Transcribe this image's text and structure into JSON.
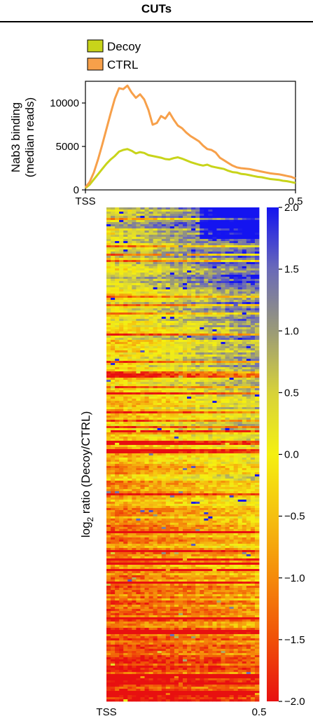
{
  "header": {
    "title": "CUTs"
  },
  "chart_data": [
    {
      "type": "line",
      "ylabel_lines": [
        "Nab3 binding",
        "(median reads)"
      ],
      "x_tick_labels": [
        "TSS",
        "0.5"
      ],
      "xlim": [
        0,
        0.5
      ],
      "ylim": [
        0,
        12500
      ],
      "y_ticks": [
        {
          "value": 0,
          "label": "0"
        },
        {
          "value": 5000,
          "label": "5000"
        },
        {
          "value": 10000,
          "label": "10000"
        }
      ],
      "legend_position": "top-left",
      "grid": false,
      "series": [
        {
          "name": "Decoy",
          "color": "#c8d41a",
          "x": [
            0,
            0.01,
            0.02,
            0.03,
            0.04,
            0.05,
            0.06,
            0.07,
            0.08,
            0.09,
            0.1,
            0.11,
            0.12,
            0.13,
            0.14,
            0.15,
            0.16,
            0.17,
            0.18,
            0.19,
            0.2,
            0.21,
            0.22,
            0.23,
            0.24,
            0.25,
            0.26,
            0.27,
            0.28,
            0.29,
            0.3,
            0.31,
            0.32,
            0.33,
            0.34,
            0.35,
            0.36,
            0.37,
            0.38,
            0.39,
            0.4,
            0.41,
            0.42,
            0.43,
            0.44,
            0.45,
            0.46,
            0.47,
            0.48,
            0.49,
            0.5
          ],
          "y": [
            200,
            600,
            1200,
            1800,
            2400,
            3000,
            3500,
            3900,
            4400,
            4600,
            4700,
            4500,
            4200,
            4350,
            4250,
            4000,
            3900,
            3800,
            3700,
            3550,
            3500,
            3650,
            3750,
            3600,
            3400,
            3200,
            3050,
            2900,
            2800,
            2900,
            2700,
            2600,
            2500,
            2400,
            2200,
            2050,
            2000,
            1850,
            1800,
            1700,
            1600,
            1500,
            1450,
            1350,
            1250,
            1200,
            1150,
            1050,
            1000,
            900,
            800
          ]
        },
        {
          "name": "CTRL",
          "color": "#f7a04a",
          "x": [
            0,
            0.01,
            0.02,
            0.03,
            0.04,
            0.05,
            0.06,
            0.07,
            0.08,
            0.09,
            0.1,
            0.11,
            0.12,
            0.13,
            0.14,
            0.15,
            0.16,
            0.17,
            0.18,
            0.19,
            0.2,
            0.21,
            0.22,
            0.23,
            0.24,
            0.25,
            0.26,
            0.27,
            0.28,
            0.29,
            0.3,
            0.31,
            0.32,
            0.33,
            0.34,
            0.35,
            0.36,
            0.37,
            0.38,
            0.39,
            0.4,
            0.41,
            0.42,
            0.43,
            0.44,
            0.45,
            0.46,
            0.47,
            0.48,
            0.49,
            0.5
          ],
          "y": [
            300,
            900,
            2000,
            3500,
            5200,
            7000,
            8800,
            10500,
            11700,
            11600,
            12000,
            11200,
            10600,
            11000,
            10400,
            9200,
            7500,
            7700,
            8500,
            8200,
            8900,
            8100,
            7400,
            7100,
            6600,
            6200,
            5900,
            5600,
            5100,
            4700,
            4600,
            4300,
            3700,
            3400,
            3100,
            2800,
            2600,
            2500,
            2450,
            2400,
            2300,
            2200,
            2100,
            2000,
            1900,
            1850,
            1800,
            1700,
            1600,
            1500,
            1300
          ]
        }
      ]
    },
    {
      "type": "heatmap",
      "ylabel": "log2 ratio (Decoy/CTRL)",
      "ylabel_main": "log",
      "ylabel_sub": "2",
      "ylabel_rest": " ratio (Decoy/CTRL)",
      "x_tick_labels": [
        "TSS",
        "0.5"
      ],
      "colorbar": {
        "range": [
          -2.0,
          2.0
        ],
        "ticks": [
          "2.0",
          "1.5",
          "1.0",
          "0.5",
          "0.0",
          "−0.5",
          "−1.0",
          "−1.5",
          "−2.0"
        ],
        "colors": [
          "#1414f0",
          "#6a6ab8",
          "#9a9a78",
          "#d7d23a",
          "#f5f011",
          "#f5c010",
          "#f58a0a",
          "#f05008",
          "#e81010"
        ]
      },
      "description_pattern": "rows sorted top-to-bottom from high to low log2 ratio; high values concentrated at upper-right"
    }
  ]
}
